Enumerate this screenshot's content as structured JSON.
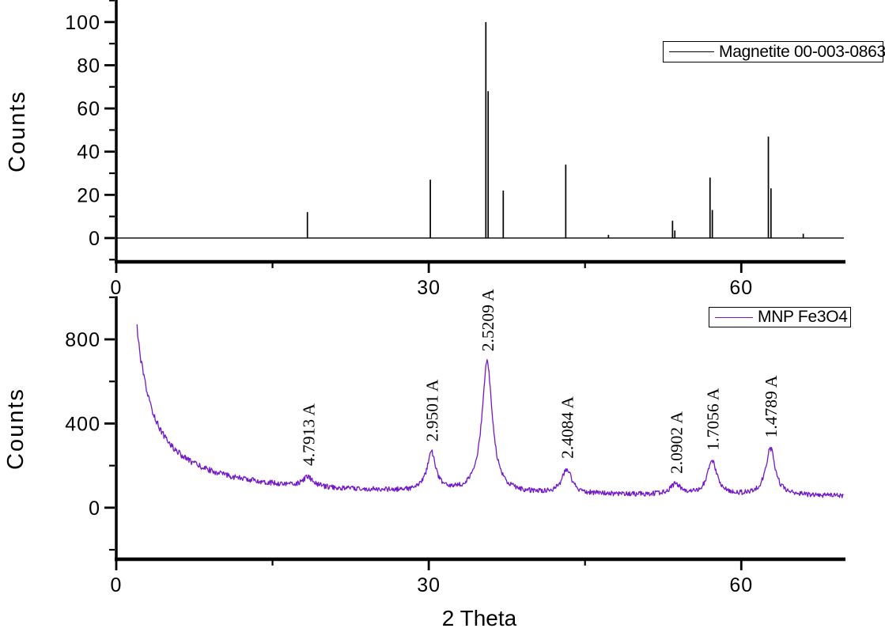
{
  "figure": {
    "background": "#ffffff",
    "axis_color": "#000000",
    "x_axis": {
      "label": "2 Theta",
      "min": 0,
      "max": 70,
      "ticks_major": [
        0,
        30,
        60
      ],
      "ticks_minor": [
        15,
        45
      ],
      "tick_labels": [
        "0",
        "30",
        "60"
      ]
    }
  },
  "chart_data": [
    {
      "type": "line",
      "series_name": "reference-stick-pattern",
      "legend": "Magnetite 00-003-0863",
      "color": "#000000",
      "ylabel": "Counts",
      "ylim": [
        -11,
        110.2
      ],
      "yticks_major": [
        0,
        20,
        40,
        60,
        80,
        100
      ],
      "yticks_minor": [
        -10,
        10,
        30,
        50,
        70,
        90,
        110
      ],
      "xticks_major": [
        0,
        30,
        60
      ],
      "xticks_minor": [
        15,
        45
      ],
      "grid": false,
      "legend_position": "top-right",
      "sticks": [
        {
          "two_theta": 18.35,
          "intensity": 12
        },
        {
          "two_theta": 30.15,
          "intensity": 27
        },
        {
          "two_theta": 35.48,
          "intensity": 100
        },
        {
          "two_theta": 35.7,
          "intensity": 68
        },
        {
          "two_theta": 37.15,
          "intensity": 22
        },
        {
          "two_theta": 43.15,
          "intensity": 34
        },
        {
          "two_theta": 47.25,
          "intensity": 1.5
        },
        {
          "two_theta": 53.4,
          "intensity": 8
        },
        {
          "two_theta": 53.62,
          "intensity": 3.5
        },
        {
          "two_theta": 57.0,
          "intensity": 28
        },
        {
          "two_theta": 57.22,
          "intensity": 13
        },
        {
          "two_theta": 62.6,
          "intensity": 47
        },
        {
          "two_theta": 62.85,
          "intensity": 23
        },
        {
          "two_theta": 65.95,
          "intensity": 2
        }
      ]
    },
    {
      "type": "line",
      "series_name": "sample-pattern",
      "legend": "MNP Fe3O4",
      "color": "#7318C9",
      "ylabel": "Counts",
      "xlabel": "2 Theta",
      "ylim": [
        -245,
        1005
      ],
      "yticks_major": [
        0,
        400,
        800
      ],
      "yticks_minor": [
        -200,
        200,
        600,
        1000
      ],
      "xticks_major": [
        0,
        30,
        60
      ],
      "xticks_minor": [
        15,
        45
      ],
      "grid": false,
      "legend_position": "top-right",
      "x_start": 2.0,
      "x_end": 69.85,
      "background_model": {
        "base": 45,
        "amp": 1850,
        "power": 1.2
      },
      "noise": {
        "seed": 12345,
        "base": 11,
        "bg_fraction": 0.012
      },
      "peaks": [
        {
          "two_theta": 18.4,
          "amplitude": 45,
          "hwhm": 0.55,
          "label": "4.7913 A"
        },
        {
          "two_theta": 30.25,
          "amplitude": 185,
          "hwhm": 0.5,
          "label": "2.9501 A"
        },
        {
          "two_theta": 35.6,
          "amplitude": 620,
          "hwhm": 0.6,
          "label": "2.5209 A"
        },
        {
          "two_theta": 43.25,
          "amplitude": 115,
          "hwhm": 0.55,
          "label": "2.4084 A"
        },
        {
          "two_theta": 53.7,
          "amplitude": 48,
          "hwhm": 0.6,
          "label": "2.0902 A"
        },
        {
          "two_theta": 57.2,
          "amplitude": 160,
          "hwhm": 0.55,
          "label": "1.7056 A"
        },
        {
          "two_theta": 62.8,
          "amplitude": 222,
          "hwhm": 0.55,
          "label": "1.4789 A"
        }
      ]
    }
  ]
}
